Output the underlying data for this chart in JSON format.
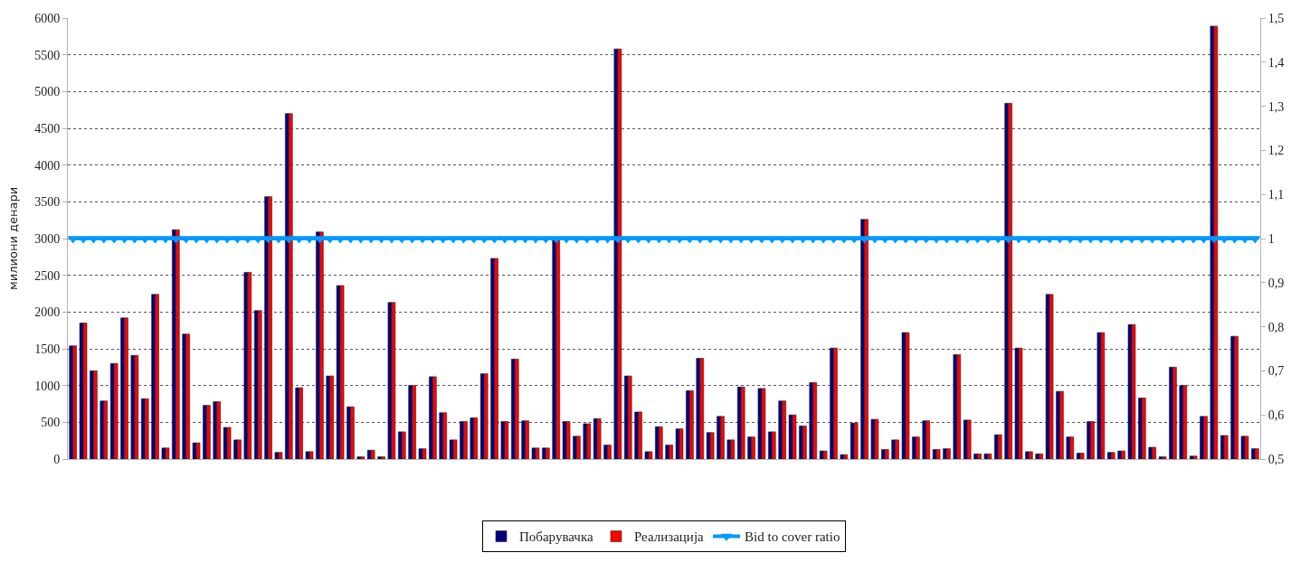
{
  "chart_data": {
    "type": "bar",
    "ylabel": "милиони денари",
    "categories": [
      null,
      null,
      null,
      null,
      null,
      null,
      null,
      null,
      null,
      null,
      null,
      null,
      null,
      null,
      null,
      null,
      null,
      null,
      null,
      null,
      null,
      null,
      null,
      null,
      null,
      null,
      null,
      null,
      null,
      null,
      null,
      null,
      null,
      null,
      null,
      null,
      null,
      null,
      null,
      null,
      null,
      null,
      null,
      null,
      null,
      null,
      null,
      null,
      null,
      null,
      null,
      null,
      null,
      null,
      null,
      null,
      null,
      null,
      null,
      null,
      null,
      null,
      null,
      null,
      null,
      null,
      null,
      null,
      null,
      null,
      null,
      null,
      null,
      null,
      null,
      null,
      null,
      null,
      null,
      null,
      null,
      null,
      null,
      null,
      null,
      null,
      null,
      null,
      null,
      null,
      null,
      null,
      null,
      null,
      null,
      null,
      null,
      null,
      null,
      null,
      null,
      null,
      null,
      null,
      null,
      null,
      null,
      null,
      null,
      null,
      null,
      null,
      null,
      null,
      null,
      null
    ],
    "series": [
      {
        "name": "Побарувачка",
        "color": "#000080",
        "values": [
          1540,
          1850,
          1200,
          790,
          1300,
          1920,
          1410,
          820,
          2240,
          150,
          3120,
          1700,
          220,
          730,
          780,
          430,
          260,
          2540,
          2020,
          3570,
          90,
          4700,
          970,
          100,
          3090,
          1130,
          2360,
          710,
          30,
          120,
          30,
          2130,
          370,
          1000,
          140,
          1120,
          630,
          260,
          510,
          560,
          1160,
          2730,
          510,
          1360,
          520,
          150,
          150,
          2980,
          510,
          310,
          480,
          550,
          190,
          5580,
          1130,
          640,
          100,
          440,
          190,
          410,
          930,
          1370,
          360,
          580,
          260,
          980,
          300,
          960,
          370,
          790,
          600,
          450,
          1040,
          110,
          1510,
          60,
          490,
          3260,
          540,
          130,
          260,
          1720,
          300,
          520,
          130,
          140,
          1420,
          530,
          70,
          70,
          330,
          4840,
          1510,
          100,
          70,
          2240,
          920,
          300,
          80,
          510,
          1720,
          90,
          110,
          1830,
          830,
          160,
          30,
          1250,
          1000,
          40,
          580,
          5890,
          320,
          1670,
          310,
          140
        ]
      },
      {
        "name": "Реализација",
        "color": "#ff0000",
        "values": [
          1540,
          1850,
          1200,
          790,
          1300,
          1920,
          1410,
          820,
          2240,
          150,
          3120,
          1700,
          220,
          730,
          780,
          430,
          260,
          2540,
          2020,
          3570,
          90,
          4700,
          970,
          100,
          3090,
          1130,
          2360,
          710,
          30,
          120,
          30,
          2130,
          370,
          1000,
          140,
          1120,
          630,
          260,
          510,
          560,
          1160,
          2730,
          510,
          1360,
          520,
          150,
          150,
          2980,
          510,
          310,
          480,
          550,
          190,
          5580,
          1130,
          640,
          100,
          440,
          190,
          410,
          930,
          1370,
          360,
          580,
          260,
          980,
          300,
          960,
          370,
          790,
          600,
          450,
          1040,
          110,
          1510,
          60,
          490,
          3260,
          540,
          130,
          260,
          1720,
          300,
          520,
          130,
          140,
          1420,
          530,
          70,
          70,
          330,
          4840,
          1510,
          100,
          70,
          2240,
          920,
          300,
          80,
          510,
          1720,
          90,
          110,
          1830,
          830,
          160,
          30,
          1250,
          1000,
          40,
          580,
          5890,
          320,
          1670,
          310,
          140
        ]
      },
      {
        "name": "Bid to cover ratio",
        "type": "line",
        "axis": "y2",
        "color": "#0099ff",
        "marker": "triangle-down",
        "values": [
          1,
          1,
          1,
          1,
          1,
          1,
          1,
          1,
          1,
          1,
          1,
          1,
          1,
          1,
          1,
          1,
          1,
          1,
          1,
          1,
          1,
          1,
          1,
          1,
          1,
          1,
          1,
          1,
          1,
          1,
          1,
          1,
          1,
          1,
          1,
          1,
          1,
          1,
          1,
          1,
          1,
          1,
          1,
          1,
          1,
          1,
          1,
          1,
          1,
          1,
          1,
          1,
          1,
          1,
          1,
          1,
          1,
          1,
          1,
          1,
          1,
          1,
          1,
          1,
          1,
          1,
          1,
          1,
          1,
          1,
          1,
          1,
          1,
          1,
          1,
          1,
          1,
          1,
          1,
          1,
          1,
          1,
          1,
          1,
          1,
          1,
          1,
          1,
          1,
          1,
          1,
          1,
          1,
          1,
          1,
          1,
          1,
          1,
          1,
          1,
          1,
          1,
          1,
          1,
          1,
          1,
          1,
          1,
          1,
          1,
          1,
          1,
          1,
          1,
          1,
          1
        ]
      }
    ],
    "ylim": [
      0,
      6000
    ],
    "yticks": [
      0,
      500,
      1000,
      1500,
      2000,
      2500,
      3000,
      3500,
      4000,
      4500,
      5000,
      5500,
      6000
    ],
    "y2lim": [
      0.5,
      1.5
    ],
    "y2ticks": [
      {
        "value": 0.5,
        "label": "0,5"
      },
      {
        "value": 0.6,
        "label": "0,6"
      },
      {
        "value": 0.7,
        "label": "0,7"
      },
      {
        "value": 0.8,
        "label": "0,8"
      },
      {
        "value": 0.9,
        "label": "0,9"
      },
      {
        "value": 1,
        "label": "1"
      },
      {
        "value": 1.1,
        "label": "1,1"
      },
      {
        "value": 1.2,
        "label": "1,2"
      },
      {
        "value": 1.3,
        "label": "1,3"
      },
      {
        "value": 1.4,
        "label": "1,4"
      },
      {
        "value": 1.5,
        "label": "1,5"
      }
    ],
    "grid": "y",
    "legend": "bottom",
    "line_style": "solid"
  }
}
